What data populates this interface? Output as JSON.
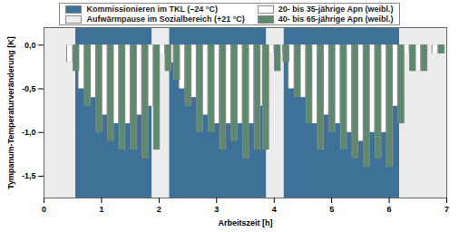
{
  "chart_data": {
    "type": "bar",
    "x_label": "Arbeitszeit [h]",
    "y_label": "Tympanum-Temperaturveränderung [K]",
    "xlim": [
      0,
      7
    ],
    "xticks": [
      0,
      1,
      2,
      3,
      4,
      5,
      6,
      7
    ],
    "ylim": [
      -1.75,
      0.2
    ],
    "yticks": [
      {
        "value": 0,
        "label": "0,0"
      },
      {
        "value": -0.5,
        "label": "-0,5"
      },
      {
        "value": -1,
        "label": "-1,0"
      },
      {
        "value": -1.5,
        "label": "-1,5"
      }
    ],
    "legend": "top",
    "phases": [
      {
        "name": "Kommissionieren im TKL (–24 °C)",
        "color": "#3d7197",
        "intervals": [
          [
            0.55,
            1.88
          ],
          [
            2.18,
            3.87
          ],
          [
            4.17,
            6.18
          ]
        ]
      },
      {
        "name": "Aufwärmpause im Sozialbereich (+21 °C)",
        "color": "#ececec",
        "intervals": [
          [
            0,
            0.55
          ],
          [
            1.88,
            2.18
          ],
          [
            3.87,
            4.17
          ],
          [
            6.18,
            7
          ]
        ]
      }
    ],
    "x": [
      0.5,
      0.7,
      0.9,
      1.1,
      1.3,
      1.5,
      1.7,
      1.9,
      2.1,
      2.25,
      2.45,
      2.65,
      2.85,
      3.05,
      3.25,
      3.45,
      3.65,
      3.8,
      4.0,
      4.15,
      4.35,
      4.55,
      4.75,
      4.95,
      5.15,
      5.35,
      5.55,
      5.75,
      5.95,
      6.15,
      6.35,
      6.55,
      6.85
    ],
    "series": [
      {
        "name": "20- bis 35-jährige Apn (weibl.)",
        "color": "#ffffff",
        "values": [
          -0.2,
          -0.5,
          -0.6,
          -0.8,
          -0.9,
          -0.9,
          -0.8,
          -0.7,
          -0.1,
          -0.2,
          -0.5,
          -0.6,
          -0.8,
          -0.9,
          -0.9,
          -0.9,
          -0.9,
          -0.7,
          -0.1,
          -0.1,
          -0.5,
          -0.6,
          -0.9,
          -0.8,
          -0.9,
          -1.0,
          -1.1,
          -1.0,
          -1.0,
          -0.7,
          -0.1,
          -0.3,
          -0.1
        ]
      },
      {
        "name": "40- bis 65-jährige Apn (weibl.)",
        "color": "#5b8a6c",
        "values": [
          -0.3,
          -0.7,
          -1.0,
          -1.1,
          -1.2,
          -1.2,
          -1.3,
          -1.2,
          -0.3,
          -0.4,
          -0.7,
          -1.0,
          -1.0,
          -1.2,
          -1.1,
          -1.3,
          -1.2,
          -1.2,
          -0.3,
          -0.2,
          -0.6,
          -0.9,
          -1.2,
          -1.0,
          -1.2,
          -1.3,
          -1.4,
          -1.3,
          -1.4,
          -0.9,
          -0.3,
          -0.3,
          -0.1
        ]
      }
    ]
  }
}
